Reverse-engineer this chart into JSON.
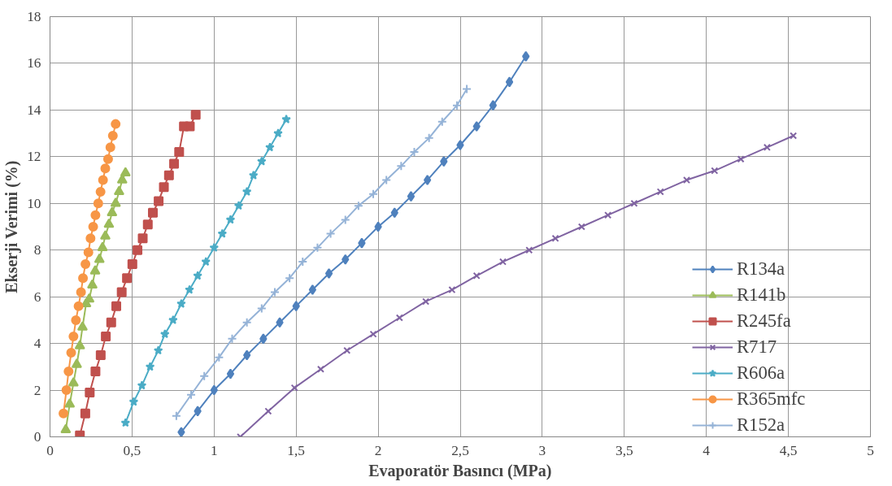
{
  "chart_data": {
    "type": "line",
    "xlabel": "Evaporatör Basıncı (MPa)",
    "ylabel": "Ekserji Verimi (%)",
    "xlim": [
      0,
      5
    ],
    "ylim": [
      0,
      18
    ],
    "xticks": [
      0,
      {
        "value": 0.5,
        "label": "0,5"
      },
      1,
      {
        "value": 1.5,
        "label": "1,5"
      },
      2,
      {
        "value": 2.5,
        "label": "2,5"
      },
      3,
      {
        "value": 3.5,
        "label": "3,5"
      },
      4,
      {
        "value": 4.5,
        "label": "4,5"
      },
      5
    ],
    "yticks": [
      0,
      2,
      4,
      6,
      8,
      10,
      12,
      14,
      16,
      18
    ],
    "grid": true,
    "legend": "right",
    "line_style": "solid",
    "series": [
      {
        "name": "R134a",
        "color": "#4f81bd",
        "marker": "diamond",
        "x": [
          0.8,
          0.9,
          1.0,
          1.1,
          1.2,
          1.3,
          1.4,
          1.5,
          1.6,
          1.7,
          1.8,
          1.9,
          2.0,
          2.1,
          2.2,
          2.3,
          2.4,
          2.5,
          2.6,
          2.7,
          2.8,
          2.9
        ],
        "values": [
          0.2,
          1.1,
          2.0,
          2.7,
          3.5,
          4.2,
          4.9,
          5.6,
          6.3,
          7.0,
          7.6,
          8.3,
          9.0,
          9.6,
          10.3,
          11.0,
          11.8,
          12.5,
          13.3,
          14.2,
          15.2,
          16.3
        ]
      },
      {
        "name": "R141b",
        "color": "#9bbb59",
        "marker": "triangle",
        "x": [
          0.096,
          0.12,
          0.143,
          0.163,
          0.182,
          0.198,
          0.22,
          0.239,
          0.258,
          0.275,
          0.301,
          0.32,
          0.337,
          0.359,
          0.378,
          0.4,
          0.421,
          0.44,
          0.46
        ],
        "values": [
          0.3,
          1.4,
          2.3,
          3.1,
          3.9,
          4.7,
          5.7,
          5.9,
          6.5,
          7.1,
          7.6,
          8.1,
          8.6,
          9.1,
          9.6,
          10.0,
          10.5,
          11.0,
          11.3
        ]
      },
      {
        "name": "R245fa",
        "color": "#c0504d",
        "marker": "square",
        "x": [
          0.182,
          0.215,
          0.242,
          0.277,
          0.309,
          0.34,
          0.373,
          0.404,
          0.437,
          0.469,
          0.502,
          0.533,
          0.565,
          0.596,
          0.627,
          0.662,
          0.694,
          0.725,
          0.756,
          0.787,
          0.816,
          0.852,
          0.888
        ],
        "values": [
          0.06,
          1.0,
          1.9,
          2.8,
          3.5,
          4.3,
          4.9,
          5.6,
          6.2,
          6.8,
          7.4,
          8.0,
          8.5,
          9.1,
          9.6,
          10.1,
          10.7,
          11.2,
          11.7,
          12.2,
          13.3,
          13.3,
          13.8
        ]
      },
      {
        "name": "R717",
        "color": "#8064a2",
        "marker": "x",
        "x": [
          1.16,
          1.33,
          1.49,
          1.65,
          1.81,
          1.97,
          2.13,
          2.29,
          2.45,
          2.6,
          2.76,
          2.92,
          3.08,
          3.24,
          3.4,
          3.56,
          3.72,
          3.88,
          4.05,
          4.21,
          4.37,
          4.53
        ],
        "values": [
          0.0,
          1.1,
          2.1,
          2.9,
          3.7,
          4.4,
          5.1,
          5.8,
          6.3,
          6.9,
          7.5,
          8.0,
          8.5,
          9.0,
          9.5,
          10.0,
          10.5,
          11.0,
          11.4,
          11.9,
          12.4,
          12.9
        ]
      },
      {
        "name": "R606a",
        "color": "#4bacc6",
        "marker": "star",
        "x": [
          0.46,
          0.51,
          0.56,
          0.61,
          0.66,
          0.7,
          0.75,
          0.8,
          0.85,
          0.9,
          0.95,
          1.0,
          1.05,
          1.1,
          1.15,
          1.2,
          1.24,
          1.29,
          1.34,
          1.39,
          1.44
        ],
        "values": [
          0.6,
          1.5,
          2.2,
          3.0,
          3.7,
          4.4,
          5.0,
          5.7,
          6.3,
          6.9,
          7.5,
          8.1,
          8.7,
          9.3,
          9.9,
          10.5,
          11.2,
          11.8,
          12.4,
          13.0,
          13.6
        ]
      },
      {
        "name": "R365mfc",
        "color": "#f79646",
        "marker": "circle",
        "x": [
          0.082,
          0.1,
          0.113,
          0.129,
          0.143,
          0.158,
          0.174,
          0.189,
          0.201,
          0.216,
          0.234,
          0.247,
          0.263,
          0.277,
          0.294,
          0.308,
          0.323,
          0.337,
          0.354,
          0.368,
          0.383,
          0.4
        ],
        "values": [
          1.0,
          2.0,
          2.8,
          3.6,
          4.3,
          5.0,
          5.6,
          6.2,
          6.8,
          7.4,
          7.9,
          8.5,
          9.0,
          9.5,
          10.0,
          10.5,
          11.0,
          11.5,
          11.9,
          12.4,
          12.9,
          13.4
        ]
      },
      {
        "name": "R152a",
        "color": "#95b3d7",
        "marker": "cross",
        "x": [
          0.77,
          0.86,
          0.94,
          1.03,
          1.11,
          1.2,
          1.29,
          1.37,
          1.46,
          1.54,
          1.63,
          1.71,
          1.8,
          1.88,
          1.97,
          2.05,
          2.14,
          2.22,
          2.31,
          2.39,
          2.48,
          2.54
        ],
        "values": [
          0.9,
          1.8,
          2.6,
          3.4,
          4.2,
          4.9,
          5.5,
          6.2,
          6.8,
          7.5,
          8.1,
          8.7,
          9.3,
          9.9,
          10.4,
          11.0,
          11.6,
          12.2,
          12.8,
          13.5,
          14.2,
          14.9
        ]
      }
    ]
  }
}
